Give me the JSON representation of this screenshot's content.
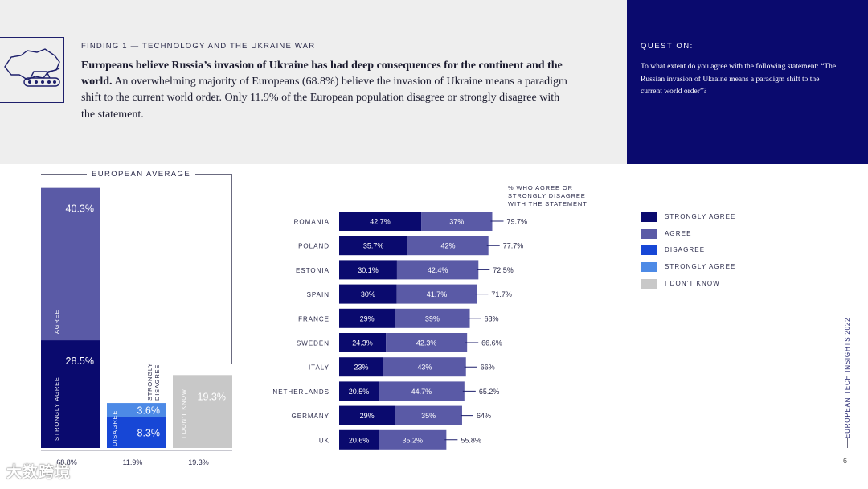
{
  "header": {
    "finding_label": "FINDING 1 — TECHNOLOGY AND THE UKRAINE WAR",
    "headline_bold": "Europeans believe Russia’s invasion of Ukraine has had deep consequences for the continent and the world.",
    "headline_rest": " An overwhelming majority of Europeans (68.8%) believe the invasion of Ukraine means a paradigm shift to the current world order. Only 11.9% of the European population disagree or strongly disagree with the statement."
  },
  "question": {
    "label": "QUESTION:",
    "text": "To what extent do you agree with the following statement: “The Russian invasion of Ukraine means a paradigm shift to the current world order”?"
  },
  "footer": {
    "page_number": "6",
    "side_label": "EUROPEAN TECH INSIGHTS 2022",
    "watermark": "大数跨境"
  },
  "legend": [
    {
      "label": "STRONGLY AGREE",
      "color": "#0a0a6e"
    },
    {
      "label": "AGREE",
      "color": "#5a5aa6"
    },
    {
      "label": "DISAGREE",
      "color": "#1747d6"
    },
    {
      "label": "STRONGLY AGREE",
      "color": "#4d8ae6"
    },
    {
      "label": "I DON'T KNOW",
      "color": "#c8c8c8"
    }
  ],
  "chart_data": [
    {
      "type": "bar",
      "title": "EUROPEAN AVERAGE",
      "ylim": [
        0,
        70
      ],
      "groups": [
        {
          "total_label": "68.8%",
          "segments": [
            {
              "name": "STRONGLY AGREE",
              "value": 28.5,
              "label": "28.5%",
              "color": "#0a0a6e"
            },
            {
              "name": "AGREE",
              "value": 40.3,
              "label": "40.3%",
              "color": "#5a5aa6"
            }
          ]
        },
        {
          "total_label": "11.9%",
          "segments": [
            {
              "name": "DISAGREE",
              "value": 8.3,
              "label": "8.3%",
              "color": "#1747d6"
            },
            {
              "name": "STRONGLY DISAGREE",
              "value": 3.6,
              "label": "3.6%",
              "color": "#4d8ae6"
            }
          ]
        },
        {
          "total_label": "19.3%",
          "segments": [
            {
              "name": "I DON'T KNOW",
              "value": 19.3,
              "label": "19.3%",
              "color": "#c8c8c8"
            }
          ]
        }
      ]
    },
    {
      "type": "bar",
      "orientation": "horizontal",
      "stacked": true,
      "title": "% WHO AGREE OR STRONGLY DISAGREE WITH THE STATEMENT",
      "categories": [
        "ROMANIA",
        "POLAND",
        "ESTONIA",
        "SPAIN",
        "FRANCE",
        "SWEDEN",
        "ITALY",
        "NETHERLANDS",
        "GERMANY",
        "UK"
      ],
      "series": [
        {
          "name": "STRONGLY AGREE",
          "color": "#0a0a6e",
          "values": [
            42.7,
            35.7,
            30.1,
            30,
            29,
            24.3,
            23,
            20.5,
            29,
            20.6
          ],
          "labels": [
            "42.7%",
            "35.7%",
            "30.1%",
            "30%",
            "29%",
            "24.3%",
            "23%",
            "20.5%",
            "29%",
            "20.6%"
          ]
        },
        {
          "name": "AGREE",
          "color": "#5a5aa6",
          "values": [
            37,
            42,
            42.4,
            41.7,
            39,
            42.3,
            43,
            44.7,
            35,
            35.2
          ],
          "labels": [
            "37%",
            "42%",
            "42.4%",
            "41.7%",
            "39%",
            "42.3%",
            "43%",
            "44.7%",
            "35%",
            "35.2%"
          ]
        }
      ],
      "totals": [
        "79.7%",
        "77.7%",
        "72.5%",
        "71.7%",
        "68%",
        "66.6%",
        "66%",
        "65.2%",
        "64%",
        "55.8%"
      ]
    }
  ]
}
